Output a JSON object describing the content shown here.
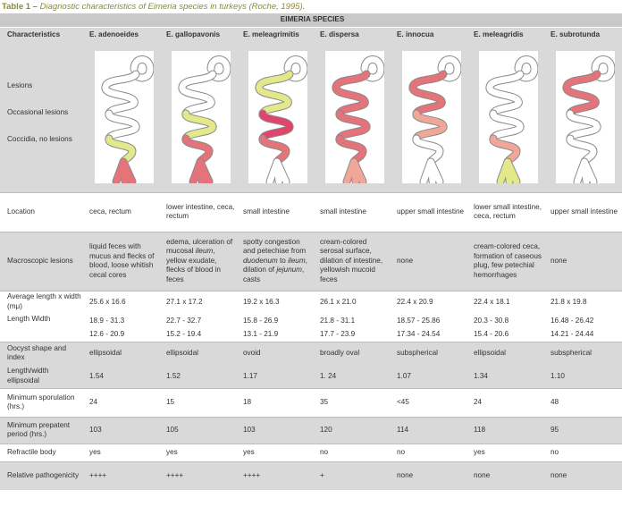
{
  "caption": {
    "label": "Table 1 –",
    "text": "Diagnostic characteristics of Eimeria species in turkeys (Roche, 1995)."
  },
  "table": {
    "group_header": "EIMERIA SPECIES",
    "columns": [
      "Characteristics",
      "E. adenoeides",
      "E. gallopavonis",
      "E. meleagrimitis",
      "E. dispersa",
      "E. innocua",
      "E. meleagridis",
      "E. subrotunda"
    ],
    "lesion_legend": [
      "Lesions",
      "Occasional lesions",
      "Coccidia, no lesions"
    ],
    "colors": {
      "lesions": "#e5737a",
      "occasional": "#f0a79a",
      "no_lesions": "#e3e88a",
      "severe": "#e2456c",
      "outline": "#8a8a8a"
    },
    "rows": {
      "location": {
        "label": "Location",
        "values": [
          "ceca, rectum",
          "lower intestine, ceca, rectum",
          "small intestine",
          "small intestine",
          "upper small intestine",
          "lower small intestine, ceca, rectum",
          "upper small intestine"
        ]
      },
      "macroscopic": {
        "label": "Macroscopic lesions",
        "values": [
          "liquid feces with mucus and flecks of blood, loose whitish cecal cores",
          "edema, ulceration of mucosal ileum, yellow exudate, flecks of blood in feces",
          "spotty congestion and petechiae from duodenum to ileum, dilation of jejunum, casts",
          "cream-colored serosal surface, dilation of intestine, yellowish mucoid feces",
          "none",
          "cream-colored ceca, formation of caseous plug, few petechial hemorrhages",
          "none"
        ]
      },
      "avg_length": {
        "label": "Average length x width (mμ)",
        "values": [
          "25.6 x 16.6",
          "27.1 x 17.2",
          "19.2 x 16.3",
          "26.1 x 21.0",
          "22.4 x 20.9",
          "22.4 x 18.1",
          "21.8 x 19.8"
        ]
      },
      "length_width": {
        "label": "Length Width",
        "length": [
          "18.9 - 31.3",
          "22.7 - 32.7",
          "15.8 - 26.9",
          "21.8 - 31.1",
          "18.57 - 25.86",
          "20.3 - 30.8",
          "16.48 - 26.42"
        ],
        "width": [
          "12.6 - 20.9",
          "15.2 - 19.4",
          "13.1 - 21.9",
          "17.7 - 23.9",
          "17.34 - 24.54",
          "15.4 - 20.6",
          "14.21 - 24.44"
        ]
      },
      "shape": {
        "label": "Oocyst shape and index",
        "values": [
          "ellipsoidal",
          "ellipsoidal",
          "ovoid",
          "broadly oval",
          "subspherical",
          "ellipsoidal",
          "subspherical"
        ]
      },
      "ratio": {
        "label": "Length/width ellipsoidal",
        "values": [
          "1.54",
          "1.52",
          "1.17",
          "1. 24",
          "1.07",
          "1.34",
          "1.10"
        ]
      },
      "sporulation": {
        "label": "Minimum sporulation (hrs.)",
        "values": [
          "24",
          "15",
          "18",
          "35",
          "<45",
          "24",
          "48"
        ]
      },
      "prepatent": {
        "label": "Minimum prepatent period (hrs.)",
        "values": [
          "103",
          "105",
          "103",
          "120",
          "114",
          "118",
          "95"
        ]
      },
      "refractile": {
        "label": "Refractile body",
        "values": [
          "yes",
          "yes",
          "yes",
          "no",
          "no",
          "yes",
          "no"
        ]
      },
      "pathogenicity": {
        "label": "Relative pathogenicity",
        "values": [
          "++++",
          "++++",
          "++++",
          "+",
          "none",
          "none",
          "none"
        ]
      }
    },
    "intestine_segments": [
      [
        "none",
        "none",
        "none",
        "no_lesions",
        "lesions"
      ],
      [
        "none",
        "none",
        "no_lesions",
        "lesions",
        "lesions"
      ],
      [
        "none",
        "no_lesions",
        "severe",
        "lesions",
        "none"
      ],
      [
        "none",
        "lesions",
        "lesions",
        "lesions",
        "occasional"
      ],
      [
        "none",
        "lesions",
        "occasional",
        "none",
        "none"
      ],
      [
        "none",
        "none",
        "none",
        "occasional",
        "no_lesions"
      ],
      [
        "none",
        "lesions",
        "none",
        "none",
        "none"
      ]
    ]
  }
}
